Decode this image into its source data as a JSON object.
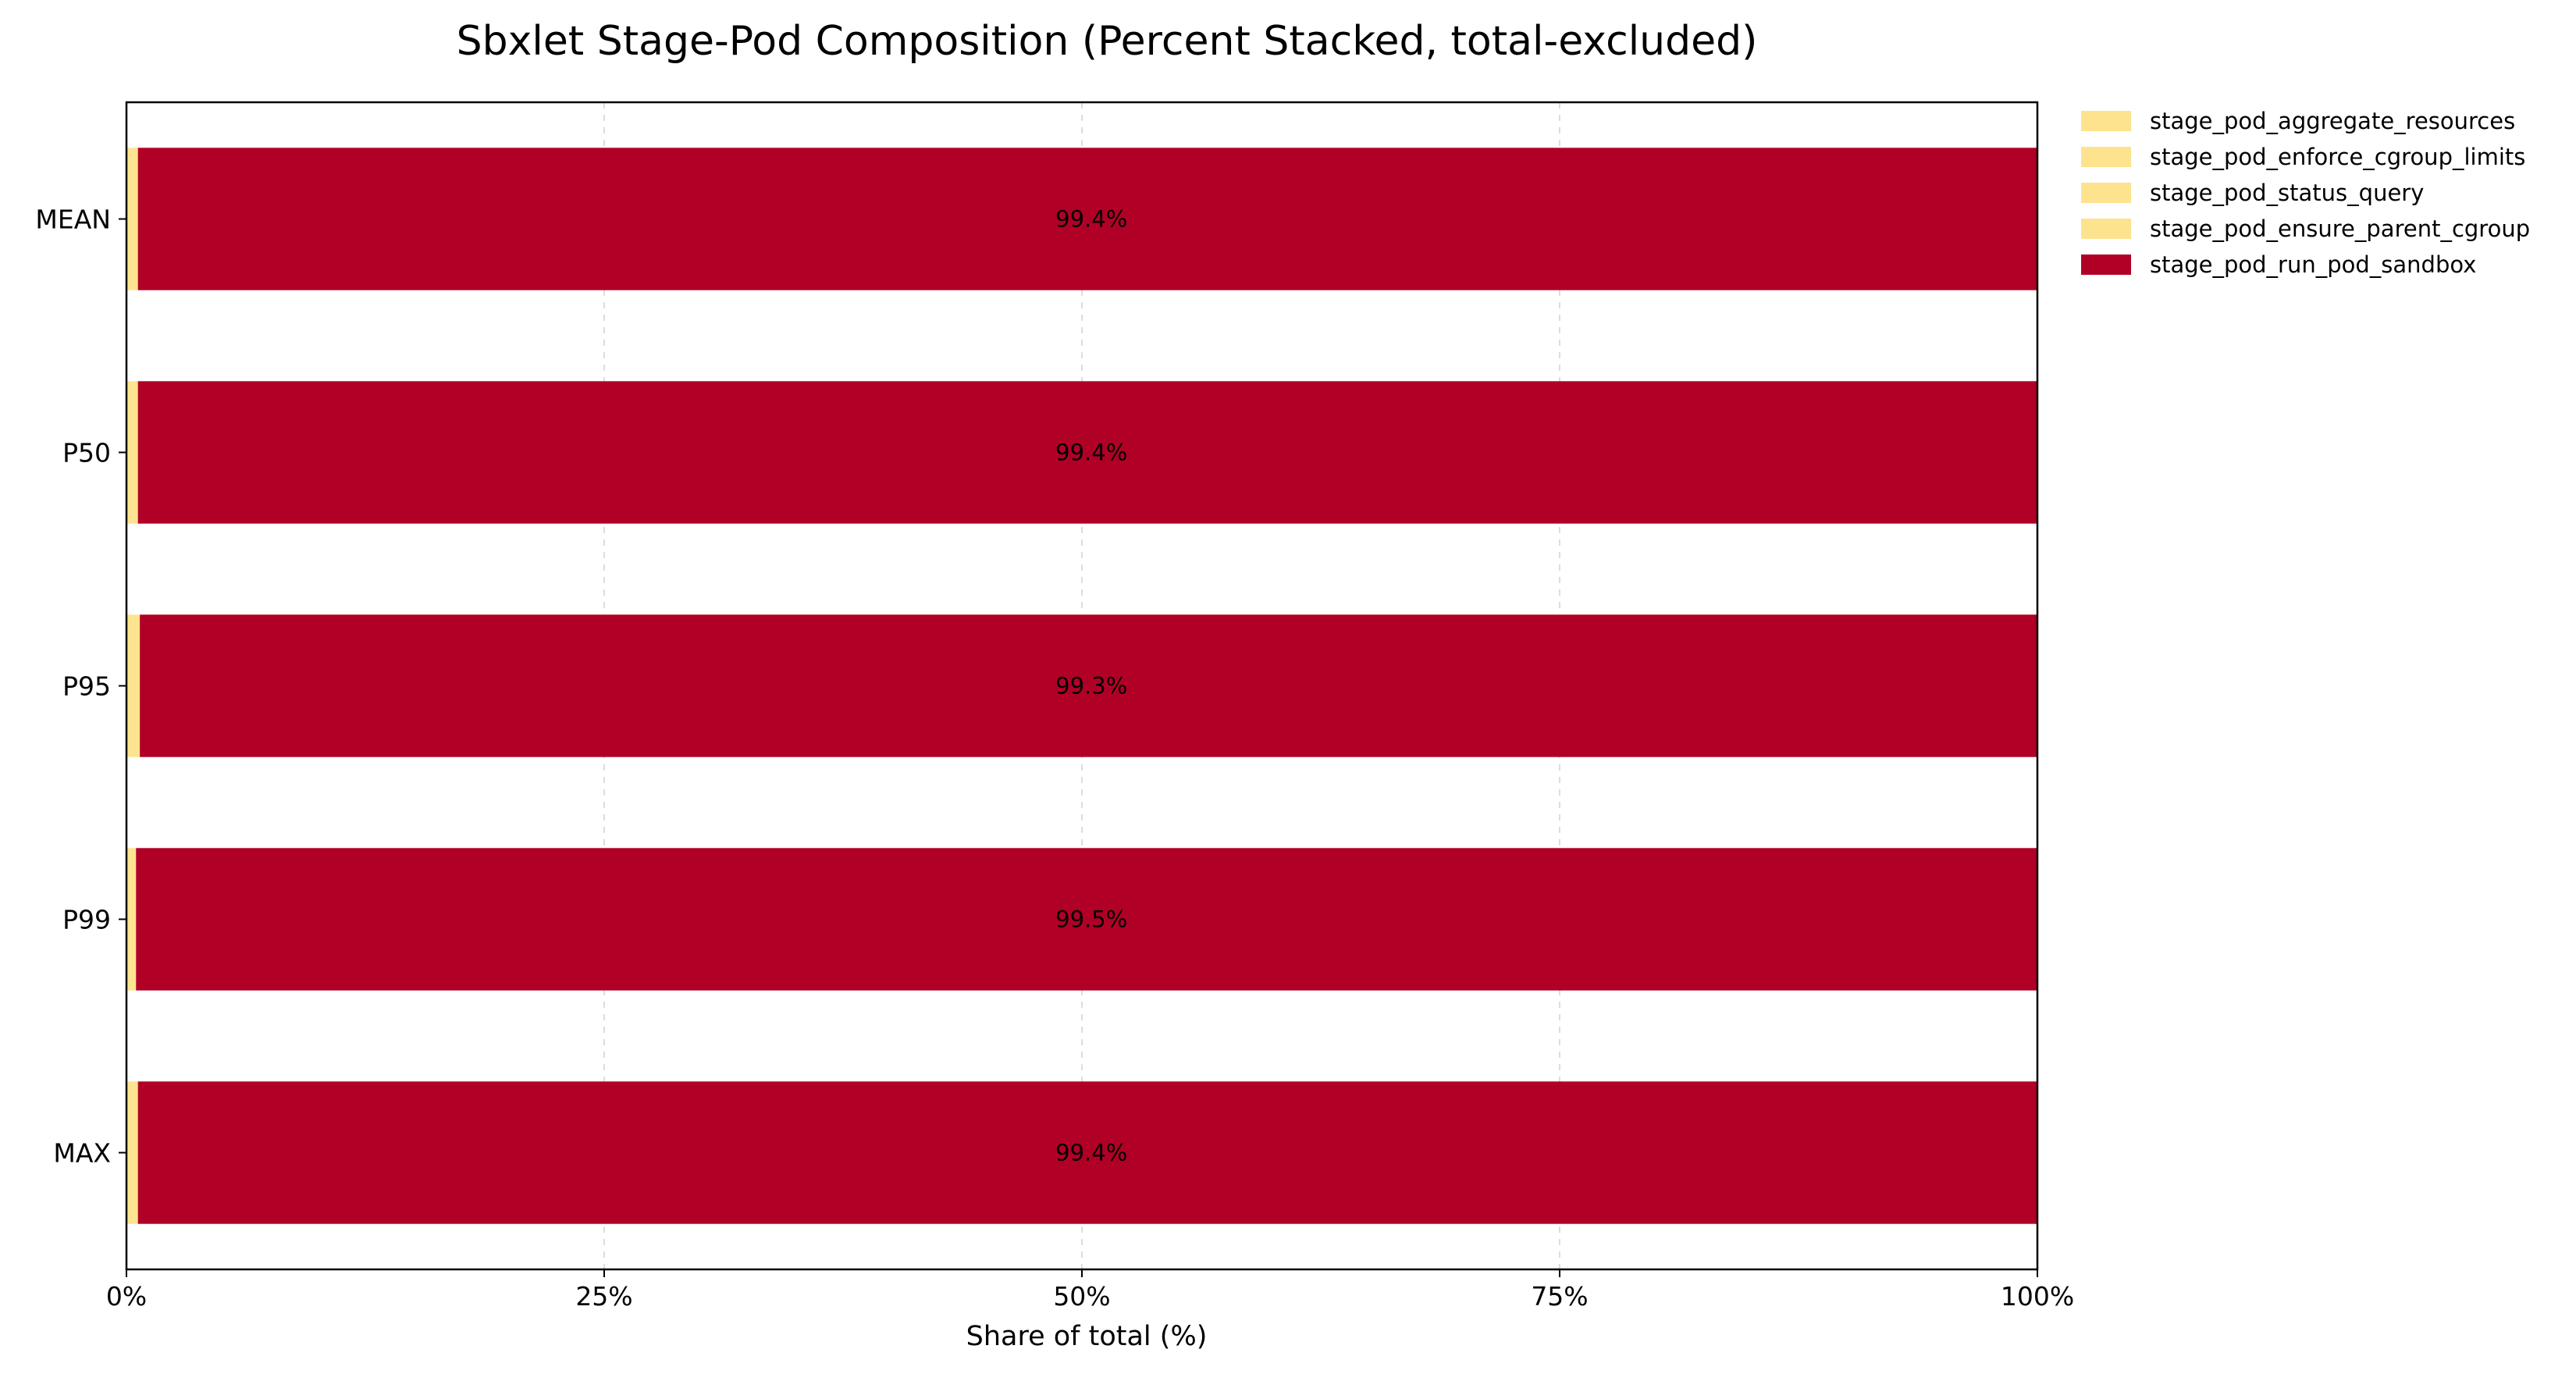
{
  "chart_data": {
    "type": "bar",
    "orientation": "horizontal",
    "stacked": "percent",
    "title": "Sbxlet Stage-Pod Composition (Percent Stacked, total-excluded)",
    "xlabel": "Share of total (%)",
    "ylabel": "",
    "xlim": [
      0,
      100
    ],
    "x_ticks": [
      "0%",
      "25%",
      "50%",
      "75%",
      "100%"
    ],
    "grid": "x-dashed",
    "legend_position": "outside-top-right",
    "categories": [
      "MEAN",
      "P50",
      "P95",
      "P99",
      "MAX"
    ],
    "series": [
      {
        "name": "stage_pod_aggregate_resources",
        "color": "#fde38e",
        "values": [
          0.15,
          0.15,
          0.18,
          0.12,
          0.15
        ]
      },
      {
        "name": "stage_pod_enforce_cgroup_limits",
        "color": "#fde38e",
        "values": [
          0.15,
          0.15,
          0.18,
          0.12,
          0.15
        ]
      },
      {
        "name": "stage_pod_status_query",
        "color": "#fde38e",
        "values": [
          0.15,
          0.15,
          0.17,
          0.13,
          0.15
        ]
      },
      {
        "name": "stage_pod_ensure_parent_cgroup",
        "color": "#fde38e",
        "values": [
          0.15,
          0.15,
          0.17,
          0.13,
          0.15
        ]
      },
      {
        "name": "stage_pod_run_pod_sandbox",
        "color": "#b10026",
        "values": [
          99.4,
          99.4,
          99.3,
          99.5,
          99.4
        ]
      }
    ],
    "data_labels": [
      "99.4%",
      "99.4%",
      "99.3%",
      "99.5%",
      "99.4%"
    ]
  }
}
